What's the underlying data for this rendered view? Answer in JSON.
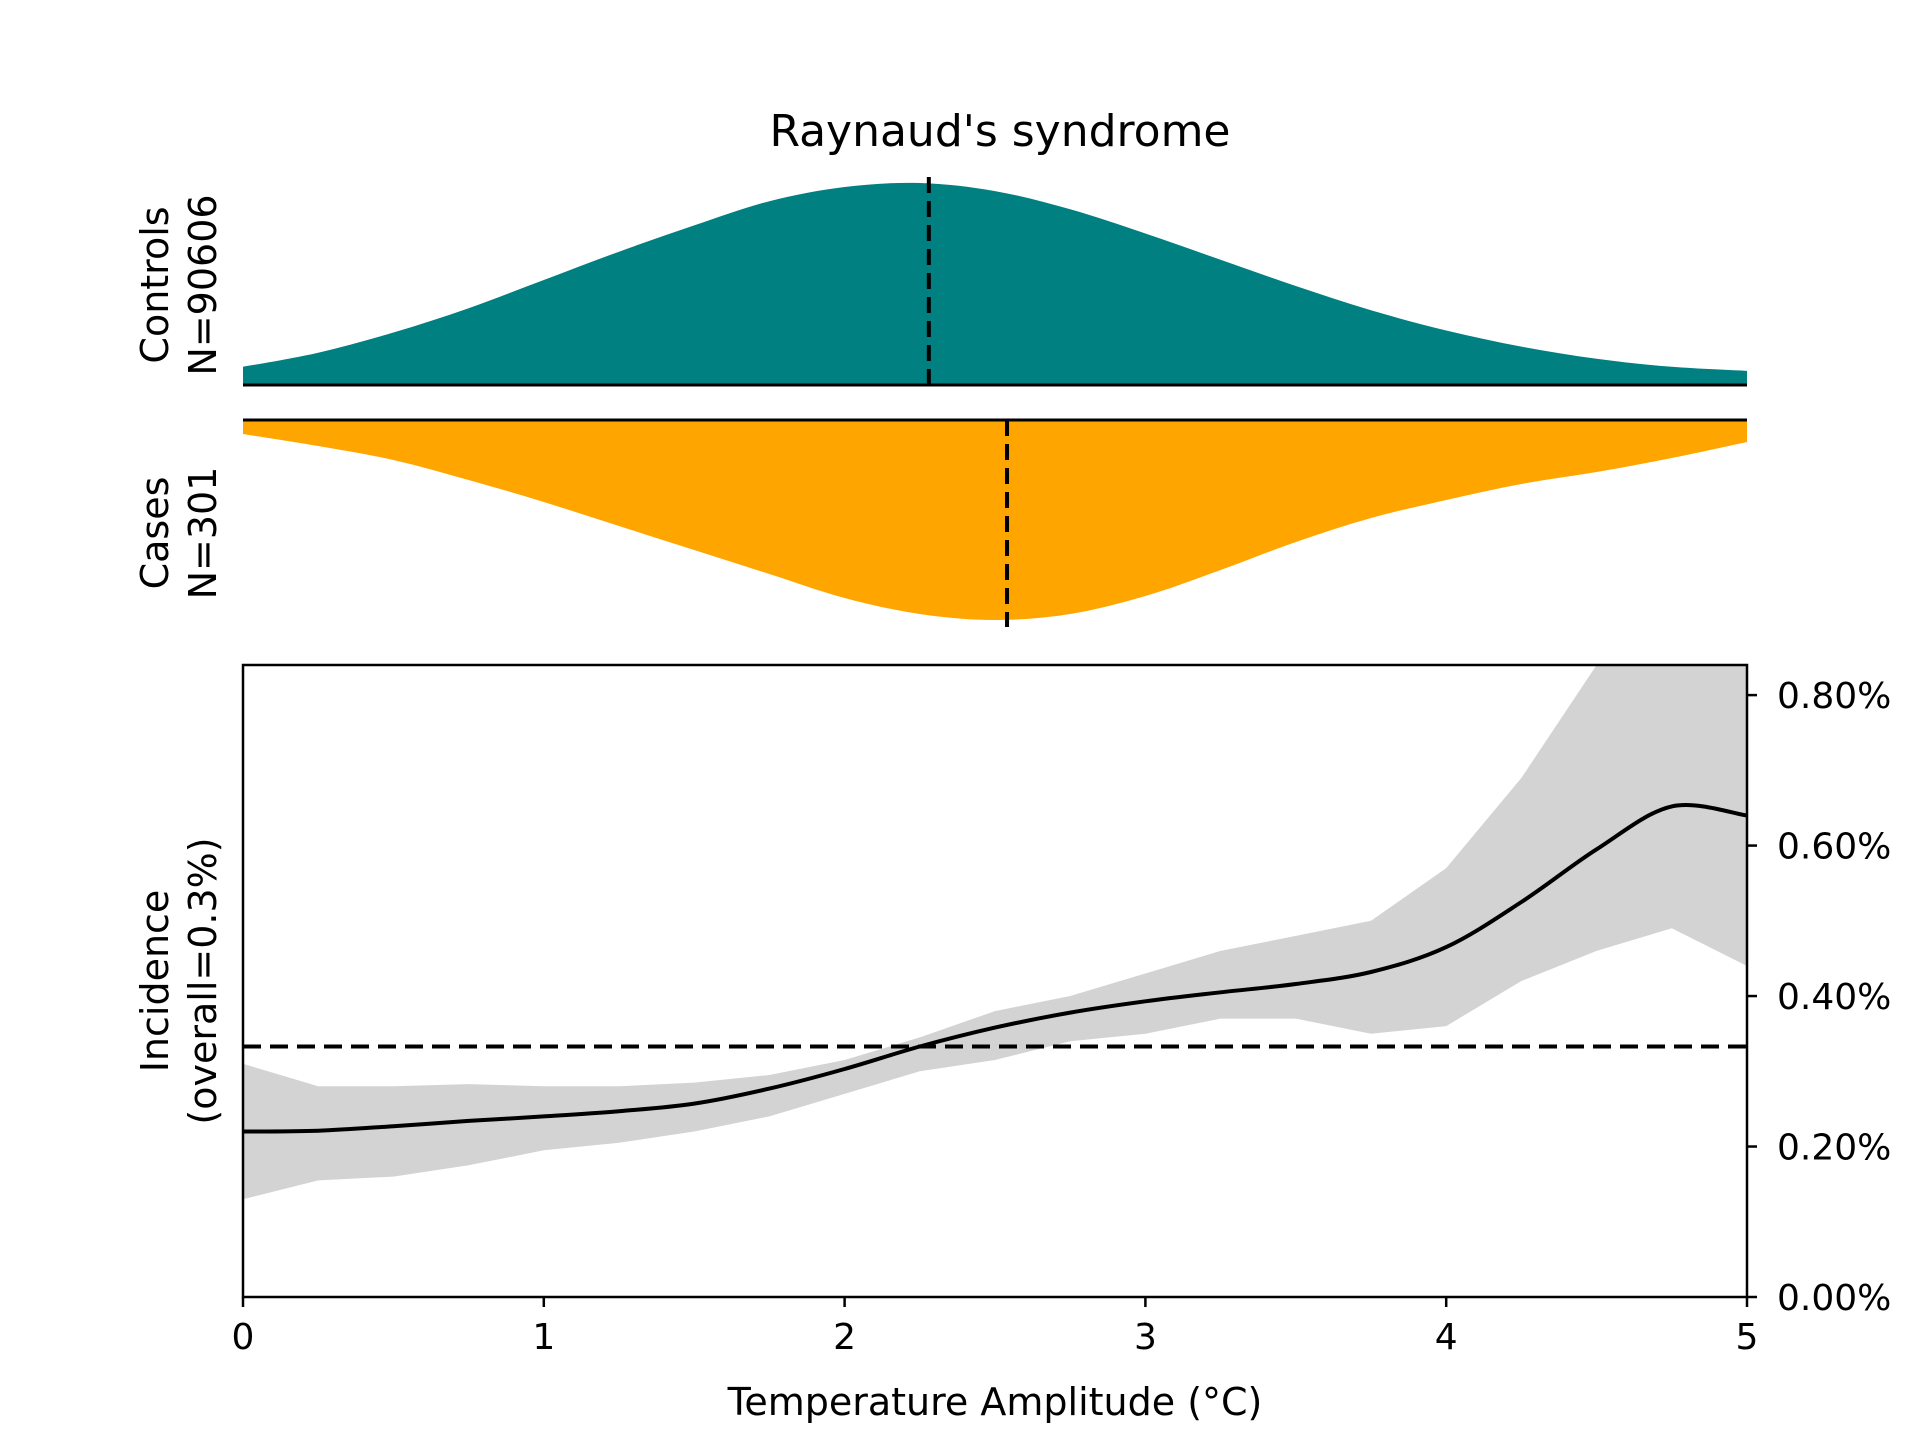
{
  "chart_data": {
    "type": "area",
    "title": "Raynaud's syndrome",
    "xlabel": "Temperature Amplitude (°C)",
    "xlim": [
      0,
      5
    ],
    "x_ticks": [
      0,
      1,
      2,
      3,
      4,
      5
    ],
    "x_tick_labels": [
      "0",
      "1",
      "2",
      "3",
      "4",
      "5"
    ],
    "grid": false,
    "legend": "none",
    "distributions": {
      "controls": {
        "label_line1": "Controls",
        "label_line2": "N=90606",
        "color": "#008080",
        "median": 2.28,
        "x": [
          0,
          0.25,
          0.5,
          0.75,
          1,
          1.25,
          1.5,
          1.75,
          2,
          2.25,
          2.5,
          2.75,
          3,
          3.25,
          3.5,
          3.75,
          4,
          4.25,
          4.5,
          4.75,
          5
        ],
        "density": [
          0.09,
          0.16,
          0.26,
          0.38,
          0.52,
          0.66,
          0.79,
          0.91,
          0.98,
          1.0,
          0.96,
          0.87,
          0.75,
          0.62,
          0.49,
          0.37,
          0.27,
          0.19,
          0.13,
          0.09,
          0.07
        ]
      },
      "cases": {
        "label_line1": "Cases",
        "label_line2": "N=301",
        "color": "#FFA500",
        "median": 2.54,
        "x": [
          0,
          0.25,
          0.5,
          0.75,
          1,
          1.25,
          1.5,
          1.75,
          2,
          2.25,
          2.5,
          2.75,
          3,
          3.25,
          3.5,
          3.75,
          4,
          4.25,
          4.5,
          4.75,
          5
        ],
        "density": [
          0.07,
          0.13,
          0.2,
          0.3,
          0.41,
          0.53,
          0.65,
          0.77,
          0.89,
          0.97,
          1.0,
          0.97,
          0.88,
          0.75,
          0.61,
          0.49,
          0.4,
          0.32,
          0.26,
          0.19,
          0.11
        ]
      }
    },
    "incidence": {
      "ylabel_line1": "Incidence",
      "ylabel_line2": "(overall=0.3%)",
      "ylim": [
        0,
        0.84
      ],
      "y_ticks": [
        0,
        0.2,
        0.4,
        0.6,
        0.8
      ],
      "y_tick_labels": [
        "0.00%",
        "0.20%",
        "0.40%",
        "0.60%",
        "0.80%"
      ],
      "y_axis_side": "right",
      "overall_rate": 0.333,
      "line_color": "#000000",
      "band_color": "#D3D3D3",
      "x": [
        0,
        0.25,
        0.5,
        0.75,
        1,
        1.25,
        1.5,
        1.75,
        2,
        2.25,
        2.5,
        2.75,
        3,
        3.25,
        3.5,
        3.75,
        4,
        4.25,
        4.5,
        4.75,
        5
      ],
      "y": [
        0.22,
        0.221,
        0.227,
        0.234,
        0.24,
        0.247,
        0.257,
        0.277,
        0.303,
        0.333,
        0.358,
        0.378,
        0.393,
        0.405,
        0.416,
        0.432,
        0.465,
        0.525,
        0.595,
        0.652,
        0.64
      ],
      "ci_low": [
        0.13,
        0.155,
        0.16,
        0.175,
        0.195,
        0.205,
        0.22,
        0.24,
        0.27,
        0.3,
        0.315,
        0.34,
        0.35,
        0.37,
        0.37,
        0.35,
        0.36,
        0.42,
        0.46,
        0.49,
        0.44
      ],
      "ci_high": [
        0.31,
        0.28,
        0.28,
        0.283,
        0.28,
        0.28,
        0.285,
        0.295,
        0.315,
        0.345,
        0.38,
        0.4,
        0.43,
        0.46,
        0.48,
        0.5,
        0.57,
        0.69,
        0.84,
        0.84,
        0.84
      ]
    }
  }
}
